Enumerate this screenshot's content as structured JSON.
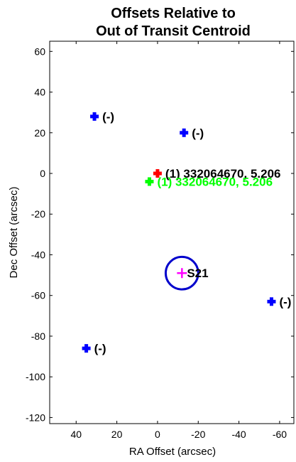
{
  "chart_data": {
    "type": "scatter",
    "title_lines": [
      "Offsets Relative to",
      "Out of Transit Centroid"
    ],
    "xlabel": "RA Offset (arcsec)",
    "ylabel": "Dec Offset (arcsec)",
    "xlim": [
      53,
      -67
    ],
    "ylim": [
      -123,
      65
    ],
    "x_reversed": true,
    "grid": false,
    "xticks": [
      {
        "v": 40,
        "label": "40"
      },
      {
        "v": 20,
        "label": "20"
      },
      {
        "v": 0,
        "label": "0"
      },
      {
        "v": -20,
        "label": "-20"
      },
      {
        "v": -40,
        "label": "-40"
      },
      {
        "v": -60,
        "label": "-60"
      }
    ],
    "yticks": [
      {
        "v": 60,
        "label": "60"
      },
      {
        "v": 40,
        "label": "40"
      },
      {
        "v": 20,
        "label": "20"
      },
      {
        "v": 0,
        "label": "0"
      },
      {
        "v": -20,
        "label": "-20"
      },
      {
        "v": -40,
        "label": "-40"
      },
      {
        "v": -60,
        "label": "-60"
      },
      {
        "v": -80,
        "label": "-80"
      },
      {
        "v": -100,
        "label": "-100"
      },
      {
        "v": -120,
        "label": "-120"
      }
    ],
    "points": [
      {
        "name": "blue-1",
        "x": 31,
        "y": 28,
        "color": "#0000ff",
        "marker": "plus",
        "label": "(-)"
      },
      {
        "name": "blue-2",
        "x": -13,
        "y": 20,
        "color": "#0000ff",
        "marker": "plus",
        "label": "(-)"
      },
      {
        "name": "blue-3",
        "x": -56,
        "y": -63,
        "color": "#0000ff",
        "marker": "plus",
        "label": "(-)"
      },
      {
        "name": "blue-4",
        "x": 35,
        "y": -86,
        "color": "#0000ff",
        "marker": "plus",
        "label": "(-)"
      },
      {
        "name": "red",
        "x": 0,
        "y": 0,
        "color": "#ff0000",
        "marker": "plus",
        "label": "(1) 332064670, 5.206"
      },
      {
        "name": "green",
        "x": 4,
        "y": -4,
        "color": "#00ff00",
        "marker": "plus",
        "label": "(1) 332064670, 5.206"
      },
      {
        "name": "s21",
        "x": -12,
        "y": -49,
        "color": "#ff00ff",
        "marker": "cross-thin",
        "label": "S21",
        "circle_radius": 8,
        "circle_color": "#0000cc"
      }
    ]
  }
}
